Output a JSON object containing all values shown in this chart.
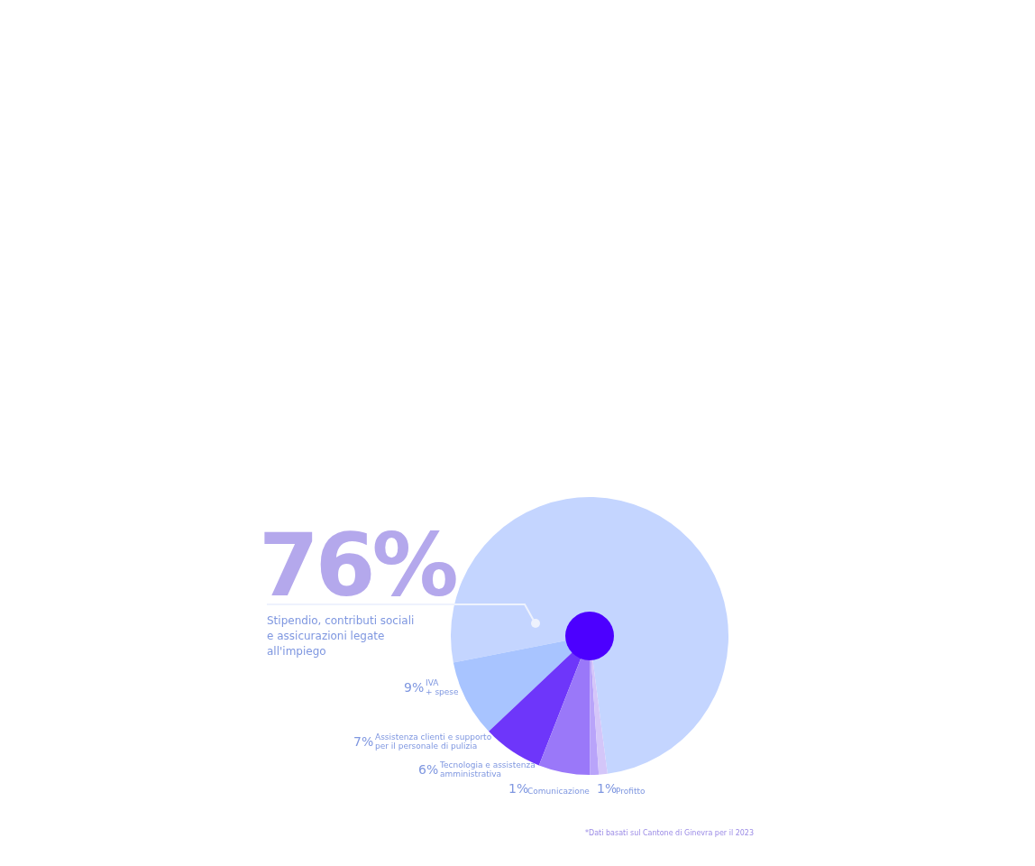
{
  "chart_data": {
    "type": "pie",
    "categories": [
      "Stipendio, contributi sociali\ne assicurazioni legate\nall'impiego",
      "IVA\n+ spese",
      "Assistenza clienti e supporto\nper il personale di pulizia",
      "Tecnologia e assistenza\namministrativa",
      "Comunicazione",
      "Profitto"
    ],
    "values": [
      76,
      9,
      7,
      6,
      1,
      1
    ],
    "value_labels": [
      "76%",
      "9%",
      "7%",
      "6%",
      "1%",
      "1%"
    ],
    "colors": [
      "#c4d5ff",
      "#a8c4ff",
      "#6e36fa",
      "#9a78f9",
      "#b9a4fa",
      "#d4c6f9"
    ],
    "annotations": [
      "*Dati basati sul Cantone di Ginevra per il 2023"
    ]
  }
}
